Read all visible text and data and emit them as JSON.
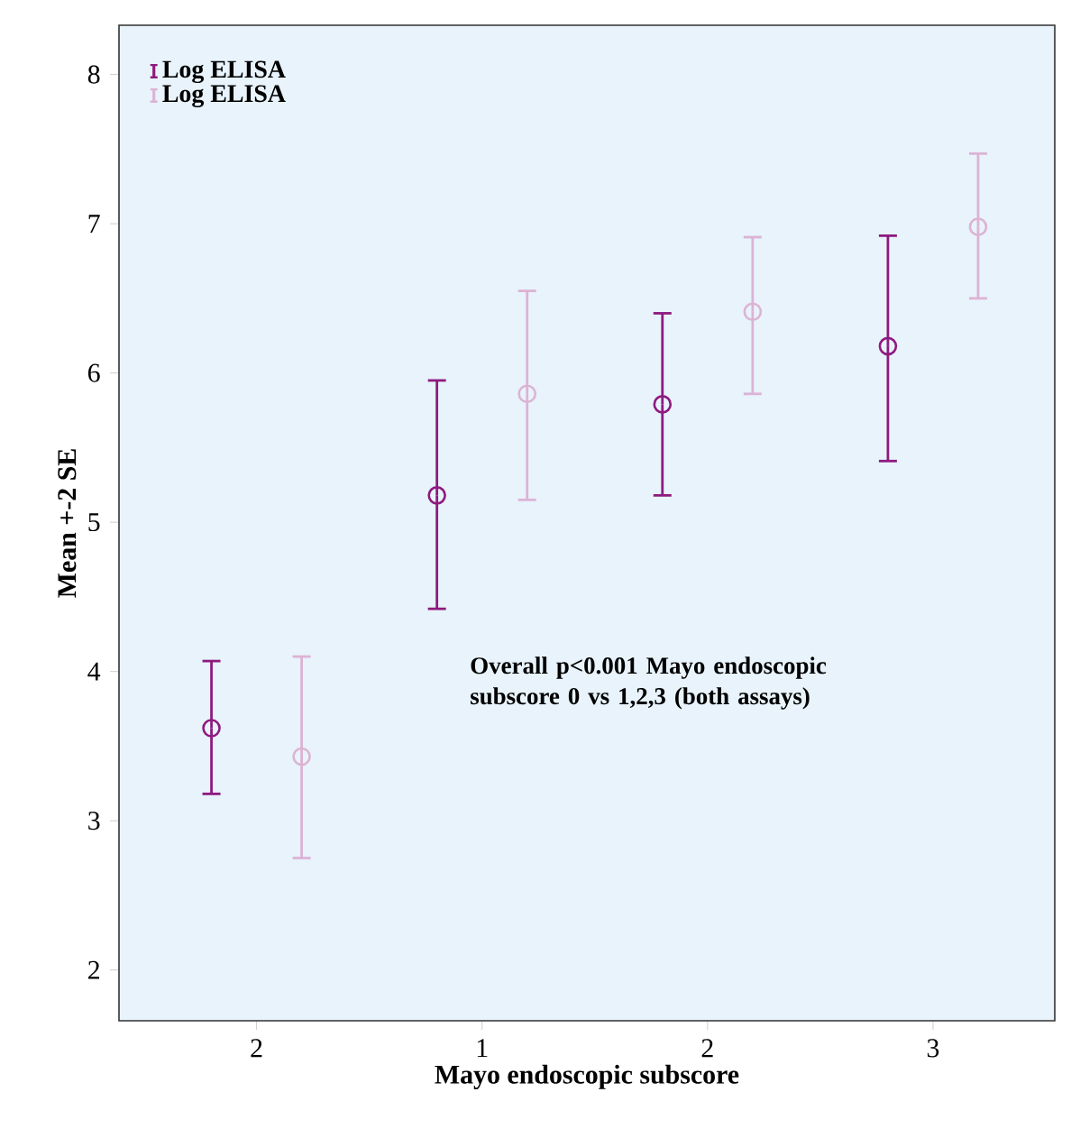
{
  "chart_data": {
    "type": "scatter",
    "xlabel": "Mayo endoscopic subscore",
    "ylabel": "Mean +-2 SE",
    "categories": [
      "2",
      "1",
      "2",
      "3"
    ],
    "series": [
      {
        "name": "Log ELISA",
        "color": "#8e1a7f",
        "values": [
          3.62,
          5.18,
          5.79,
          6.18
        ],
        "errors": [
          [
            3.18,
            4.07
          ],
          [
            4.42,
            5.95
          ],
          [
            5.18,
            6.4
          ],
          [
            5.41,
            6.92
          ]
        ]
      },
      {
        "name": "Log ELISA",
        "color": "#dcb3d5",
        "values": [
          3.43,
          5.86,
          6.41,
          6.98
        ],
        "errors": [
          [
            2.75,
            4.1
          ],
          [
            5.15,
            6.55
          ],
          [
            5.86,
            6.91
          ],
          [
            6.5,
            7.47
          ]
        ]
      }
    ],
    "ylim": [
      1.66,
      8.33
    ],
    "yticks": [
      2,
      3,
      4,
      5,
      6,
      7,
      8
    ],
    "marker": "circle",
    "legend": "top left",
    "grid": false,
    "annotations": [
      "Overall p<0.001 Mayo endoscopic subscore 0 vs 1,2,3 (both assays)"
    ]
  }
}
